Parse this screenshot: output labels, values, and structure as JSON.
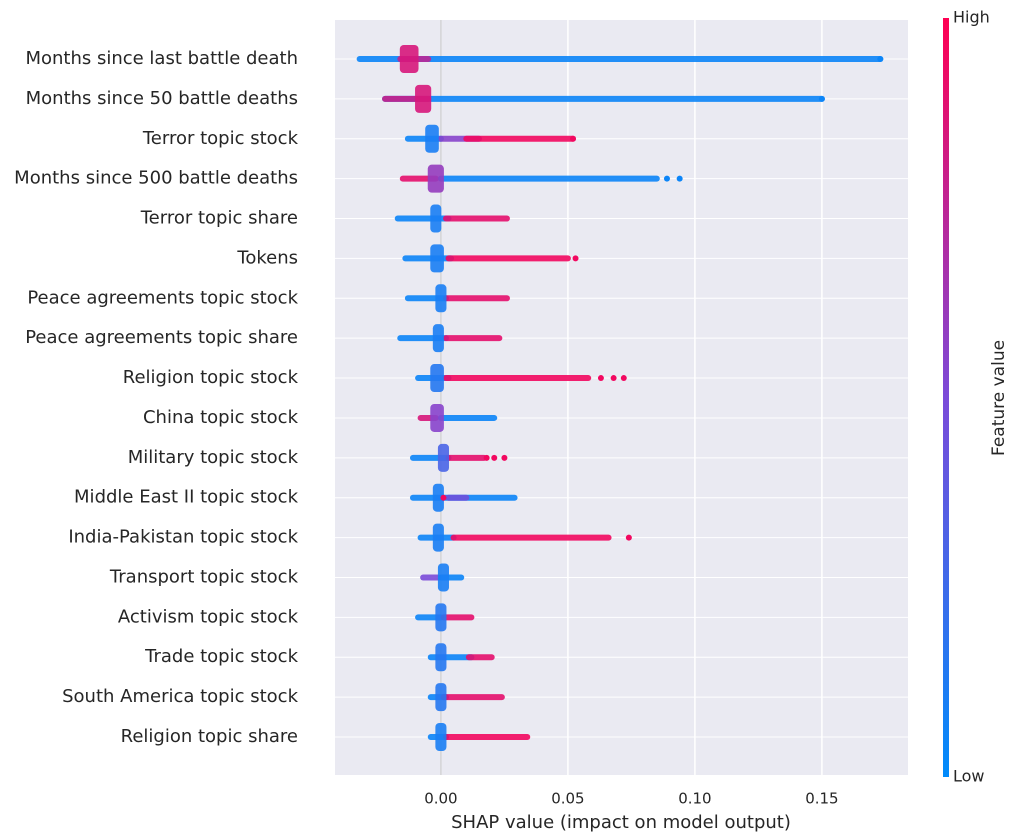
{
  "chart_data": {
    "type": "beeswarm",
    "xlabel": "SHAP value (impact on model output)",
    "xlim": [
      -0.0417,
      0.1839
    ],
    "xticks": [
      {
        "value": 0,
        "label": "0.00"
      },
      {
        "value": 0.05,
        "label": "0.05"
      },
      {
        "value": 0.1,
        "label": "0.10"
      },
      {
        "value": 0.15,
        "label": "0.15"
      }
    ],
    "zero_line": 0,
    "grid": true,
    "colormap": [
      "#008bfb",
      "#7b4bd9",
      "#ff0052"
    ],
    "colorbar": {
      "high": "High",
      "low": "Low",
      "label": "Feature value"
    },
    "features": [
      {
        "name": "Months since last battle death",
        "segments": [
          {
            "range": [
              -0.032,
              0.173
            ],
            "feature": 0.05
          },
          {
            "range": [
              -0.016,
              -0.005
            ],
            "feature": 0.75
          }
        ],
        "piles": [
          {
            "range": [
              -0.015,
              -0.01
            ],
            "feature": 0.85
          }
        ],
        "points": [
          {
            "value": 0.173,
            "feature": 0.05
          }
        ]
      },
      {
        "name": "Months since 50 battle deaths",
        "segments": [
          {
            "range": [
              -0.022,
              0.15
            ],
            "feature": 0.05
          },
          {
            "range": [
              -0.022,
              -0.005
            ],
            "feature": 0.8
          }
        ],
        "piles": [
          {
            "range": [
              -0.009,
              -0.005
            ],
            "feature": 0.85
          }
        ],
        "points": [
          {
            "value": 0.15,
            "feature": 0.05
          }
        ]
      },
      {
        "name": "Terror topic stock",
        "segments": [
          {
            "range": [
              -0.013,
              0.0
            ],
            "feature": 0.05
          },
          {
            "range": [
              0.0,
              0.015
            ],
            "feature": 0.55
          },
          {
            "range": [
              0.01,
              0.052
            ],
            "feature": 0.95
          }
        ],
        "piles": [
          {
            "range": [
              -0.005,
              -0.002
            ],
            "feature": 0.1
          }
        ],
        "points": [
          {
            "value": 0.052,
            "feature": 0.95
          }
        ]
      },
      {
        "name": "Months since 500 battle deaths",
        "segments": [
          {
            "range": [
              -0.015,
              -0.002
            ],
            "feature": 0.9
          },
          {
            "range": [
              0.0,
              0.085
            ],
            "feature": 0.05
          }
        ],
        "piles": [
          {
            "range": [
              -0.004,
              0.0
            ],
            "feature": 0.6
          }
        ],
        "points": [
          {
            "value": 0.089,
            "feature": 0.05
          },
          {
            "value": 0.094,
            "feature": 0.05
          }
        ]
      },
      {
        "name": "Terror topic share",
        "segments": [
          {
            "range": [
              -0.017,
              0.003
            ],
            "feature": 0.05
          },
          {
            "range": [
              0.002,
              0.026
            ],
            "feature": 0.9
          }
        ],
        "piles": [
          {
            "range": [
              -0.003,
              -0.001
            ],
            "feature": 0.1
          }
        ],
        "points": []
      },
      {
        "name": "Tokens",
        "segments": [
          {
            "range": [
              -0.014,
              0.004
            ],
            "feature": 0.05
          },
          {
            "range": [
              0.003,
              0.05
            ],
            "feature": 0.95
          }
        ],
        "piles": [
          {
            "range": [
              -0.003,
              0.0
            ],
            "feature": 0.1
          }
        ],
        "points": [
          {
            "value": 0.053,
            "feature": 0.95
          }
        ]
      },
      {
        "name": "Peace agreements topic stock",
        "segments": [
          {
            "range": [
              -0.013,
              0.002
            ],
            "feature": 0.05
          },
          {
            "range": [
              0.002,
              0.026
            ],
            "feature": 0.9
          }
        ],
        "piles": [
          {
            "range": [
              -0.001,
              0.001
            ],
            "feature": 0.1
          }
        ],
        "points": []
      },
      {
        "name": "Peace agreements topic share",
        "segments": [
          {
            "range": [
              -0.016,
              0.002
            ],
            "feature": 0.05
          },
          {
            "range": [
              0.002,
              0.023
            ],
            "feature": 0.9
          }
        ],
        "piles": [
          {
            "range": [
              -0.002,
              0.0
            ],
            "feature": 0.1
          }
        ],
        "points": []
      },
      {
        "name": "Religion topic stock",
        "segments": [
          {
            "range": [
              -0.009,
              0.003
            ],
            "feature": 0.05
          },
          {
            "range": [
              0.002,
              0.058
            ],
            "feature": 0.95
          }
        ],
        "piles": [
          {
            "range": [
              -0.003,
              0.0
            ],
            "feature": 0.15
          }
        ],
        "points": [
          {
            "value": 0.063,
            "feature": 0.95
          },
          {
            "value": 0.068,
            "feature": 0.95
          },
          {
            "value": 0.072,
            "feature": 0.95
          }
        ]
      },
      {
        "name": "China topic stock",
        "segments": [
          {
            "range": [
              -0.008,
              -0.002
            ],
            "feature": 0.85
          },
          {
            "range": [
              0.0,
              0.021
            ],
            "feature": 0.05
          }
        ],
        "piles": [
          {
            "range": [
              -0.003,
              0.0
            ],
            "feature": 0.55
          }
        ],
        "points": []
      },
      {
        "name": "Military topic stock",
        "segments": [
          {
            "range": [
              -0.011,
              0.003
            ],
            "feature": 0.05
          },
          {
            "range": [
              0.003,
              0.017
            ],
            "feature": 0.9
          }
        ],
        "piles": [
          {
            "range": [
              0.0,
              0.002
            ],
            "feature": 0.3
          }
        ],
        "points": [
          {
            "value": 0.018,
            "feature": 0.95
          },
          {
            "value": 0.021,
            "feature": 0.95
          },
          {
            "value": 0.025,
            "feature": 0.95
          }
        ]
      },
      {
        "name": "Middle East II topic stock",
        "segments": [
          {
            "range": [
              -0.011,
              0.029
            ],
            "feature": 0.05
          },
          {
            "range": [
              0.003,
              0.01
            ],
            "feature": 0.45
          }
        ],
        "piles": [
          {
            "range": [
              -0.002,
              0.0
            ],
            "feature": 0.1
          }
        ],
        "points": [
          {
            "value": 0.001,
            "feature": 0.95
          }
        ]
      },
      {
        "name": "India-Pakistan topic stock",
        "segments": [
          {
            "range": [
              -0.008,
              0.005
            ],
            "feature": 0.05
          },
          {
            "range": [
              0.005,
              0.066
            ],
            "feature": 0.95
          }
        ],
        "piles": [
          {
            "range": [
              -0.002,
              0.0
            ],
            "feature": 0.1
          }
        ],
        "points": [
          {
            "value": 0.074,
            "feature": 0.95
          }
        ]
      },
      {
        "name": "Transport topic stock",
        "segments": [
          {
            "range": [
              -0.007,
              -0.001
            ],
            "feature": 0.5
          },
          {
            "range": [
              0.0,
              0.008
            ],
            "feature": 0.05
          }
        ],
        "piles": [
          {
            "range": [
              0.0,
              0.002
            ],
            "feature": 0.1
          }
        ],
        "points": []
      },
      {
        "name": "Activism topic stock",
        "segments": [
          {
            "range": [
              -0.009,
              0.0
            ],
            "feature": 0.05
          },
          {
            "range": [
              0.001,
              0.012
            ],
            "feature": 0.9
          }
        ],
        "piles": [
          {
            "range": [
              -0.001,
              0.001
            ],
            "feature": 0.15
          }
        ],
        "points": []
      },
      {
        "name": "Trade topic stock",
        "segments": [
          {
            "range": [
              -0.004,
              0.012
            ],
            "feature": 0.05
          },
          {
            "range": [
              0.011,
              0.02
            ],
            "feature": 0.9
          }
        ],
        "piles": [
          {
            "range": [
              -0.001,
              0.001
            ],
            "feature": 0.15
          }
        ],
        "points": []
      },
      {
        "name": "South America topic stock",
        "segments": [
          {
            "range": [
              -0.004,
              0.002
            ],
            "feature": 0.05
          },
          {
            "range": [
              0.001,
              0.024
            ],
            "feature": 0.9
          }
        ],
        "piles": [
          {
            "range": [
              -0.001,
              0.001
            ],
            "feature": 0.15
          }
        ],
        "points": []
      },
      {
        "name": "Religion topic share",
        "segments": [
          {
            "range": [
              -0.004,
              0.002
            ],
            "feature": 0.05
          },
          {
            "range": [
              0.002,
              0.034
            ],
            "feature": 0.95
          }
        ],
        "piles": [
          {
            "range": [
              -0.001,
              0.001
            ],
            "feature": 0.1
          }
        ],
        "points": []
      }
    ]
  }
}
